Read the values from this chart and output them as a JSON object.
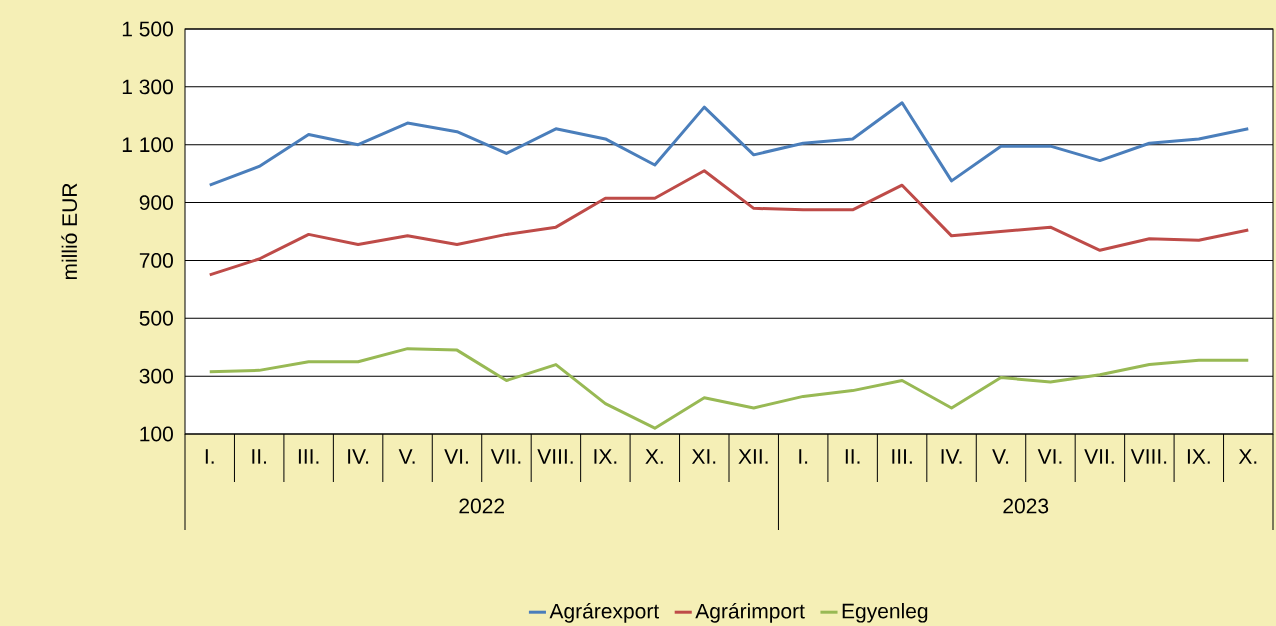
{
  "chart_data": {
    "type": "line",
    "ylabel": "millió EUR",
    "categories": [
      "I.",
      "II.",
      "III.",
      "IV.",
      "V.",
      "VI.",
      "VII.",
      "VIII.",
      "IX.",
      "X.",
      "XI.",
      "XII.",
      "I.",
      "II.",
      "III.",
      "IV.",
      "V.",
      "VI.",
      "VII.",
      "VIII.",
      "IX.",
      "X."
    ],
    "annotations": [
      "2022",
      "2023"
    ],
    "series": [
      {
        "name": "Agrárexport",
        "color": "#4a7ebb",
        "values": [
          960,
          1025,
          1135,
          1100,
          1175,
          1145,
          1070,
          1155,
          1120,
          1030,
          1230,
          1065,
          1105,
          1120,
          1245,
          975,
          1095,
          1095,
          1045,
          1105,
          1120,
          1155
        ]
      },
      {
        "name": "Agrárimport",
        "color": "#be4b48",
        "values": [
          650,
          705,
          790,
          755,
          785,
          755,
          790,
          815,
          915,
          915,
          1010,
          880,
          875,
          875,
          960,
          785,
          800,
          815,
          735,
          775,
          770,
          805
        ]
      },
      {
        "name": "Egyenleg",
        "color": "#98b954",
        "values": [
          315,
          320,
          350,
          350,
          395,
          390,
          285,
          340,
          205,
          120,
          225,
          190,
          230,
          250,
          285,
          190,
          295,
          280,
          305,
          340,
          355,
          355
        ]
      }
    ],
    "ylim": [
      100,
      1500
    ],
    "yticks": [
      {
        "value": 100,
        "label": "100"
      },
      {
        "value": 300,
        "label": "300"
      },
      {
        "value": 500,
        "label": "500"
      },
      {
        "value": 700,
        "label": "700"
      },
      {
        "value": 900,
        "label": "900"
      },
      {
        "value": 1100,
        "label": "1 100"
      },
      {
        "value": 1300,
        "label": "1 300"
      },
      {
        "value": 1500,
        "label": "1 500"
      }
    ],
    "grid": "y",
    "legend": "bottom",
    "marker": "none",
    "line_style": "solid"
  }
}
